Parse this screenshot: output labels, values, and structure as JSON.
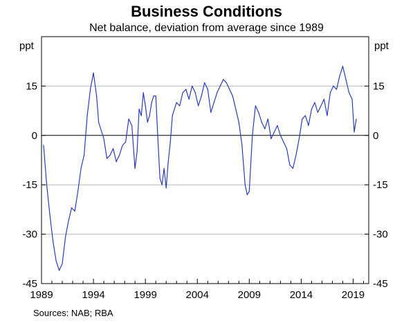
{
  "title": "Business Conditions",
  "subtitle": "Net balance, deviation from average since 1989",
  "unit_left": "ppt",
  "unit_right": "ppt",
  "source": "Sources:  NAB; RBA",
  "colors": {
    "series": "#2a3cb8",
    "grid": "#b8b8b8",
    "axis": "#000000"
  },
  "chart_data": {
    "type": "line",
    "title": "Business Conditions",
    "subtitle": "Net balance, deviation from average since 1989",
    "ylabel": "ppt",
    "ylim": [
      -45,
      30
    ],
    "yticks": [
      -45,
      -30,
      -15,
      0,
      15
    ],
    "xlim": [
      1989,
      2020.5
    ],
    "xticks": [
      1989,
      1994,
      1999,
      2004,
      2009,
      2014,
      2019
    ],
    "grid": true,
    "legend": "none",
    "series": [
      {
        "x": [
          1989.2,
          1989.5,
          1989.8,
          1990.1,
          1990.4,
          1990.7,
          1991.0,
          1991.3,
          1991.6,
          1991.9,
          1992.2,
          1992.5,
          1992.8,
          1993.1,
          1993.4,
          1993.7,
          1994.0,
          1994.3,
          1994.5,
          1994.8,
          1995.0,
          1995.3,
          1995.6,
          1995.9,
          1996.2,
          1996.5,
          1996.8,
          1997.1,
          1997.4,
          1997.7,
          1998.0,
          1998.2,
          1998.4,
          1998.6,
          1998.8,
          1999.0,
          1999.2,
          1999.4,
          1999.6,
          1999.8,
          2000.0,
          2000.2,
          2000.4,
          2000.6,
          2000.8,
          2001.0,
          2001.2,
          2001.4,
          2001.6,
          2001.8,
          2002.0,
          2002.3,
          2002.6,
          2002.9,
          2003.2,
          2003.5,
          2003.8,
          2004.1,
          2004.4,
          2004.7,
          2005.0,
          2005.3,
          2005.6,
          2005.9,
          2006.2,
          2006.5,
          2006.8,
          2007.1,
          2007.4,
          2007.7,
          2008.0,
          2008.3,
          2008.6,
          2008.8,
          2009.0,
          2009.3,
          2009.6,
          2009.9,
          2010.2,
          2010.5,
          2010.8,
          2011.1,
          2011.4,
          2011.7,
          2012.0,
          2012.3,
          2012.6,
          2012.9,
          2013.2,
          2013.5,
          2013.8,
          2014.1,
          2014.4,
          2014.7,
          2015.0,
          2015.3,
          2015.6,
          2015.9,
          2016.2,
          2016.5,
          2016.8,
          2017.1,
          2017.4,
          2017.7,
          2018.0,
          2018.3,
          2018.6,
          2018.9,
          2019.1,
          2019.3
        ],
        "y": [
          -3,
          -15,
          -24,
          -32,
          -38,
          -41,
          -39,
          -31,
          -26,
          -22,
          -23,
          -17,
          -10,
          -6,
          6,
          14,
          19,
          12,
          4,
          1,
          -1,
          -7,
          -6,
          -4,
          -8,
          -6,
          -3,
          -2,
          5,
          3,
          -10,
          -5,
          8,
          6,
          13,
          9,
          4,
          6,
          10,
          12,
          12,
          -1,
          -13,
          -15,
          -10,
          -16,
          -8,
          -2,
          6,
          8,
          10,
          9,
          13,
          14,
          11,
          15,
          13,
          9,
          12,
          16,
          14,
          7,
          10,
          13,
          15,
          17,
          16,
          14,
          12,
          8,
          4,
          -3,
          -15,
          -18,
          -17,
          0,
          9,
          7,
          4,
          2,
          5,
          -1,
          1,
          3,
          0,
          -2,
          -4,
          -9,
          -10,
          -6,
          -1,
          5,
          6,
          3,
          8,
          10,
          7,
          9,
          11,
          6,
          13,
          15,
          14,
          18,
          21,
          17,
          13,
          11,
          1,
          5
        ]
      }
    ]
  }
}
